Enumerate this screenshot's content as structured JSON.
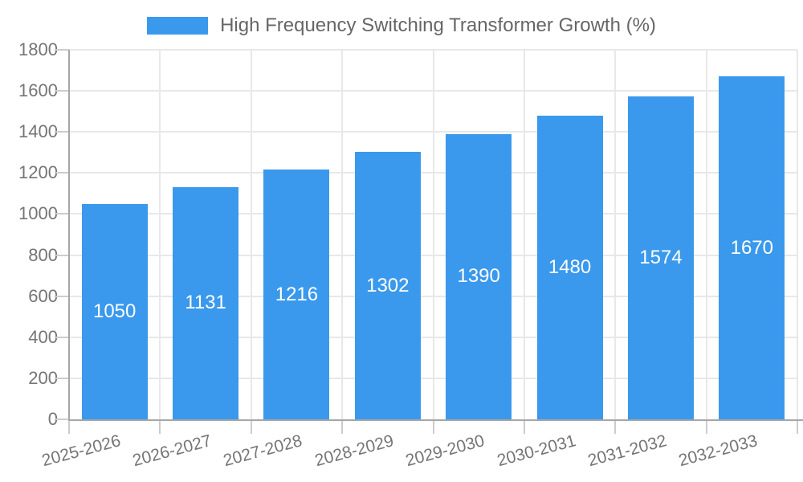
{
  "legend": {
    "swatch_color": "#3a99ec"
  },
  "chart_data": {
    "type": "bar",
    "title": "High Frequency Switching Transformer Growth (%)",
    "categories": [
      "2025-2026",
      "2026-2027",
      "2027-2028",
      "2028-2029",
      "2029-2030",
      "2030-2031",
      "2031-2032",
      "2032-2033"
    ],
    "values": [
      1050,
      1131,
      1216,
      1302,
      1390,
      1480,
      1574,
      1670
    ],
    "xlabel": "",
    "ylabel": "",
    "ylim": [
      0,
      1800
    ],
    "yticks": [
      0,
      200,
      400,
      600,
      800,
      1000,
      1200,
      1400,
      1600,
      1800
    ],
    "grid": true,
    "legend_position": "top-center",
    "bar_color": "#3a99ec",
    "value_label_color": "#ffffff",
    "grid_color": "#e8e8e8",
    "axis_color": "#a6a6a6",
    "tick_color": "#cccccc",
    "tick_text_color": "#757575",
    "legend_text_color": "#666666",
    "background_color": "#ffffff"
  }
}
